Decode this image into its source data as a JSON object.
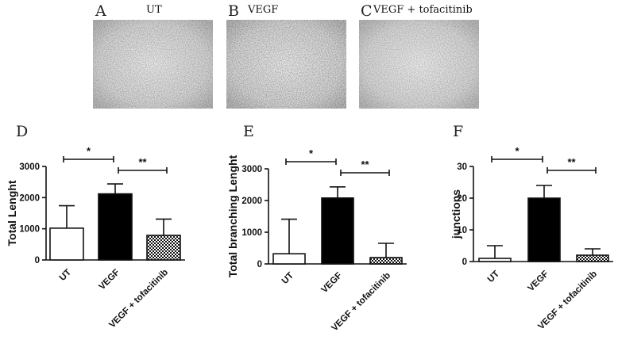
{
  "micrographs": [
    {
      "letter": "A",
      "title": "UT"
    },
    {
      "letter": "B",
      "title": "VEGF"
    },
    {
      "letter": "C",
      "title": "VEGF + tofacitinib"
    }
  ],
  "chart_data": [
    {
      "type": "bar",
      "panel": "D",
      "ylabel": "Total Lenght",
      "ylim": [
        0,
        3000
      ],
      "yticks": [
        0,
        1000,
        2000,
        3000
      ],
      "categories": [
        "UT",
        "VEGF",
        "VEGF + tofacitinib"
      ],
      "values": [
        1020,
        2120,
        790
      ],
      "errors": [
        720,
        320,
        520
      ],
      "fills": [
        "white",
        "black",
        "checker"
      ],
      "significance": [
        {
          "from": 0,
          "to": 1,
          "label": "*"
        },
        {
          "from": 1,
          "to": 2,
          "label": "**"
        }
      ]
    },
    {
      "type": "bar",
      "panel": "E",
      "ylabel": "Total branching Lenght",
      "ylim": [
        0,
        3000
      ],
      "yticks": [
        0,
        1000,
        2000,
        3000
      ],
      "categories": [
        "UT",
        "VEGF",
        "VEGF + tofacitinib"
      ],
      "values": [
        320,
        2080,
        200
      ],
      "errors": [
        1090,
        350,
        450
      ],
      "fills": [
        "white",
        "black",
        "checker"
      ],
      "significance": [
        {
          "from": 0,
          "to": 1,
          "label": "*"
        },
        {
          "from": 1,
          "to": 2,
          "label": "**"
        }
      ]
    },
    {
      "type": "bar",
      "panel": "F",
      "ylabel": "junctions",
      "ylim": [
        0,
        30
      ],
      "yticks": [
        0,
        10,
        20,
        30
      ],
      "categories": [
        "UT",
        "VEGF",
        "VEGF + tofacitinib"
      ],
      "values": [
        1,
        20,
        2
      ],
      "errors": [
        4,
        4,
        2
      ],
      "fills": [
        "white",
        "black",
        "checker"
      ],
      "significance": [
        {
          "from": 0,
          "to": 1,
          "label": "*"
        },
        {
          "from": 1,
          "to": 2,
          "label": "**"
        }
      ]
    }
  ]
}
